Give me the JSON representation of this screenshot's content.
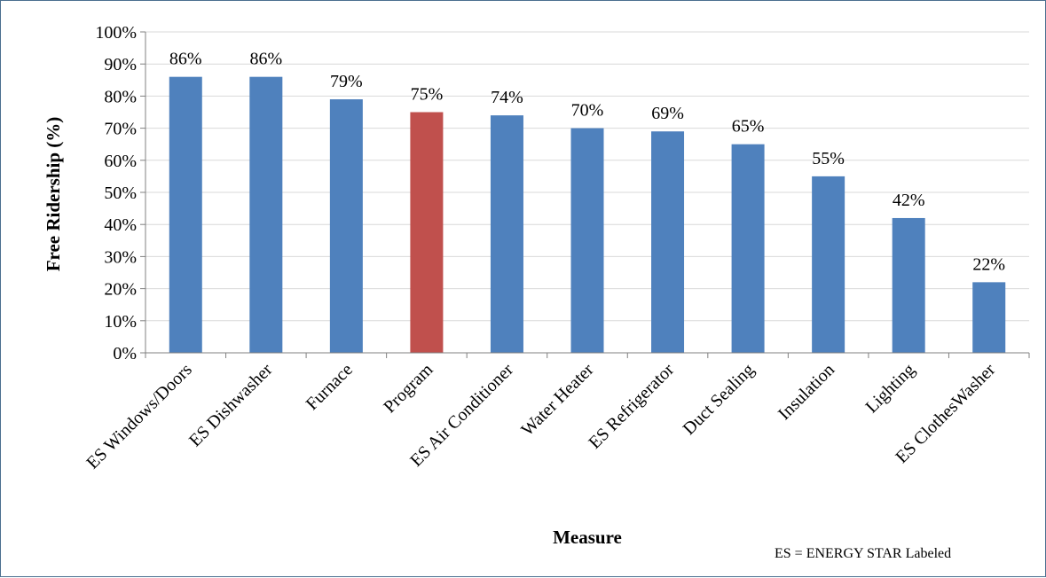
{
  "chart_data": {
    "type": "bar",
    "categories": [
      "ES Windows/Doors",
      "ES Dishwasher",
      "Furnace",
      "Program",
      "ES Air Conditioner",
      "Water Heater",
      "ES Refrigerator",
      "Duct Sealing",
      "Insulation",
      "Lighting",
      "ES ClothesWasher"
    ],
    "values": [
      86,
      86,
      79,
      75,
      74,
      70,
      69,
      65,
      55,
      42,
      22
    ],
    "data_labels": [
      "86%",
      "86%",
      "79%",
      "75%",
      "74%",
      "70%",
      "69%",
      "65%",
      "55%",
      "42%",
      "22%"
    ],
    "bar_colors": [
      "#4f81bd",
      "#4f81bd",
      "#4f81bd",
      "#c0504d",
      "#4f81bd",
      "#4f81bd",
      "#4f81bd",
      "#4f81bd",
      "#4f81bd",
      "#4f81bd",
      "#4f81bd"
    ],
    "title": "",
    "xlabel": "Measure",
    "ylabel": "Free Ridership (%)",
    "ylim": [
      0,
      100
    ],
    "y_ticks": [
      0,
      10,
      20,
      30,
      40,
      50,
      60,
      70,
      80,
      90,
      100
    ],
    "y_tick_labels": [
      "0%",
      "10%",
      "20%",
      "30%",
      "40%",
      "50%",
      "60%",
      "70%",
      "80%",
      "90%",
      "100%"
    ],
    "grid": true,
    "legend": "none"
  },
  "footnote": "ES = ENERGY STAR Labeled"
}
